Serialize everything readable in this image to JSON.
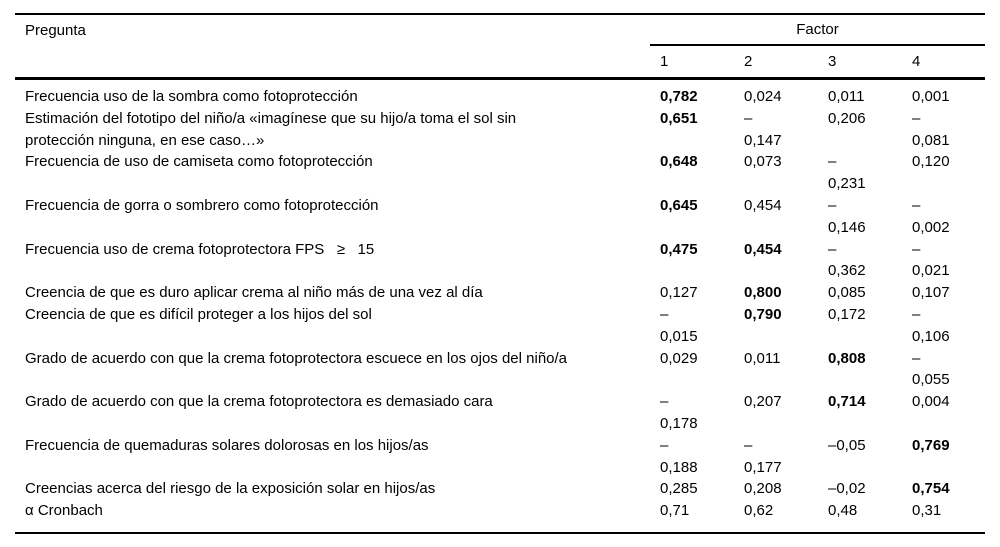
{
  "colors": {
    "text": "#000000",
    "background": "#ffffff",
    "rule": "#000000"
  },
  "table": {
    "col_question_header": "Pregunta",
    "factor_group_header": "Factor",
    "factor_columns": [
      "1",
      "2",
      "3",
      "4"
    ],
    "rows": [
      {
        "question_lines": [
          "Frecuencia uso de la sombra como fotoprotección"
        ],
        "values": [
          {
            "lines": [
              "0,782"
            ],
            "bold": true
          },
          {
            "lines": [
              "0,024"
            ],
            "bold": false
          },
          {
            "lines": [
              "0,011"
            ],
            "bold": false
          },
          {
            "lines": [
              "0,001"
            ],
            "bold": false
          }
        ]
      },
      {
        "question_lines": [
          "Estimación del fototipo del niño/a «imagínese que su hijo/a toma el sol sin",
          "protección ninguna, en ese caso…»"
        ],
        "values": [
          {
            "lines": [
              "0,651"
            ],
            "bold": true
          },
          {
            "lines": [
              "–",
              "0,147"
            ],
            "bold": false
          },
          {
            "lines": [
              "0,206"
            ],
            "bold": false
          },
          {
            "lines": [
              "–",
              "0,081"
            ],
            "bold": false
          }
        ]
      },
      {
        "question_lines": [
          "Frecuencia de uso de camiseta como fotoprotección"
        ],
        "values": [
          {
            "lines": [
              "0,648"
            ],
            "bold": true
          },
          {
            "lines": [
              "0,073"
            ],
            "bold": false
          },
          {
            "lines": [
              "–",
              "0,231"
            ],
            "bold": false
          },
          {
            "lines": [
              "0,120"
            ],
            "bold": false
          }
        ]
      },
      {
        "question_lines": [
          "Frecuencia de gorra o sombrero como fotoprotección"
        ],
        "values": [
          {
            "lines": [
              "0,645"
            ],
            "bold": true
          },
          {
            "lines": [
              "0,454"
            ],
            "bold": false
          },
          {
            "lines": [
              "–",
              "0,146"
            ],
            "bold": false
          },
          {
            "lines": [
              "–",
              "0,002"
            ],
            "bold": false
          }
        ]
      },
      {
        "question_lines": [
          "Frecuencia uso de crema fotoprotectora FPS   ≥   15"
        ],
        "values": [
          {
            "lines": [
              "0,475"
            ],
            "bold": true
          },
          {
            "lines": [
              "0,454"
            ],
            "bold": true
          },
          {
            "lines": [
              "–",
              "0,362"
            ],
            "bold": false
          },
          {
            "lines": [
              "–",
              "0,021"
            ],
            "bold": false
          }
        ]
      },
      {
        "question_lines": [
          "Creencia de que es duro aplicar crema al niño más de una vez al día"
        ],
        "values": [
          {
            "lines": [
              "0,127"
            ],
            "bold": false
          },
          {
            "lines": [
              "0,800"
            ],
            "bold": true
          },
          {
            "lines": [
              "0,085"
            ],
            "bold": false
          },
          {
            "lines": [
              "0,107"
            ],
            "bold": false
          }
        ]
      },
      {
        "question_lines": [
          "Creencia de que es difícil proteger a los hijos del sol"
        ],
        "values": [
          {
            "lines": [
              "–",
              "0,015"
            ],
            "bold": false
          },
          {
            "lines": [
              "0,790"
            ],
            "bold": true
          },
          {
            "lines": [
              "0,172"
            ],
            "bold": false
          },
          {
            "lines": [
              "–",
              "0,106"
            ],
            "bold": false
          }
        ]
      },
      {
        "question_lines": [
          "Grado de acuerdo con que la crema fotoprotectora escuece en los ojos del niño/a"
        ],
        "values": [
          {
            "lines": [
              "0,029"
            ],
            "bold": false
          },
          {
            "lines": [
              "0,011"
            ],
            "bold": false
          },
          {
            "lines": [
              "0,808"
            ],
            "bold": true
          },
          {
            "lines": [
              "–",
              "0,055"
            ],
            "bold": false
          }
        ]
      },
      {
        "question_lines": [
          "Grado de acuerdo con que la crema fotoprotectora es demasiado cara"
        ],
        "values": [
          {
            "lines": [
              "–",
              "0,178"
            ],
            "bold": false
          },
          {
            "lines": [
              "0,207"
            ],
            "bold": false
          },
          {
            "lines": [
              "0,714"
            ],
            "bold": true
          },
          {
            "lines": [
              "0,004"
            ],
            "bold": false
          }
        ]
      },
      {
        "question_lines": [
          "Frecuencia de quemaduras solares dolorosas en los hijos/as"
        ],
        "values": [
          {
            "lines": [
              "–",
              "0,188"
            ],
            "bold": false
          },
          {
            "lines": [
              "–",
              "0,177"
            ],
            "bold": false
          },
          {
            "lines": [
              "–0,05"
            ],
            "bold": false
          },
          {
            "lines": [
              "0,769"
            ],
            "bold": true
          }
        ]
      },
      {
        "question_lines": [
          "Creencias acerca del riesgo de la exposición solar en hijos/as"
        ],
        "values": [
          {
            "lines": [
              "0,285"
            ],
            "bold": false
          },
          {
            "lines": [
              "0,208"
            ],
            "bold": false
          },
          {
            "lines": [
              "–0,02"
            ],
            "bold": false
          },
          {
            "lines": [
              "0,754"
            ],
            "bold": true
          }
        ]
      },
      {
        "question_lines": [
          "α Cronbach"
        ],
        "values": [
          {
            "lines": [
              "0,71"
            ],
            "bold": false
          },
          {
            "lines": [
              "0,62"
            ],
            "bold": false
          },
          {
            "lines": [
              "0,48"
            ],
            "bold": false
          },
          {
            "lines": [
              "0,31"
            ],
            "bold": false
          }
        ]
      }
    ]
  }
}
